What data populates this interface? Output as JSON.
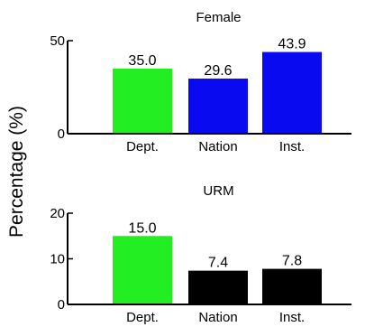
{
  "colors": {
    "dept": "#22ee22",
    "nation_female": "#0a0af0",
    "inst_female": "#0a0af0",
    "urm_bars": "#000000",
    "axis": "#000000",
    "background": "#ffffff"
  },
  "chart_data": [
    {
      "type": "bar",
      "title": "Female",
      "ylabel": "Percentage (%)",
      "categories": [
        "Dept.",
        "Nation",
        "Inst."
      ],
      "values": [
        35.0,
        29.6,
        43.9
      ],
      "value_labels": [
        "35.0",
        "29.6",
        "43.9"
      ],
      "bar_colors": [
        "#22ee22",
        "#0a0af0",
        "#0a0af0"
      ],
      "ylim": [
        0,
        50
      ],
      "yticks": [
        0,
        50
      ],
      "ytick_labels": [
        "0",
        "50"
      ],
      "grid": false
    },
    {
      "type": "bar",
      "title": "URM",
      "ylabel": "Percentage (%)",
      "categories": [
        "Dept.",
        "Nation",
        "Inst."
      ],
      "values": [
        15.0,
        7.4,
        7.8
      ],
      "value_labels": [
        "15.0",
        "7.4",
        "7.8"
      ],
      "bar_colors": [
        "#22ee22",
        "#000000",
        "#000000"
      ],
      "ylim": [
        0,
        20
      ],
      "yticks": [
        0,
        10,
        20
      ],
      "ytick_labels": [
        "0",
        "10",
        "20"
      ],
      "grid": false
    }
  ]
}
